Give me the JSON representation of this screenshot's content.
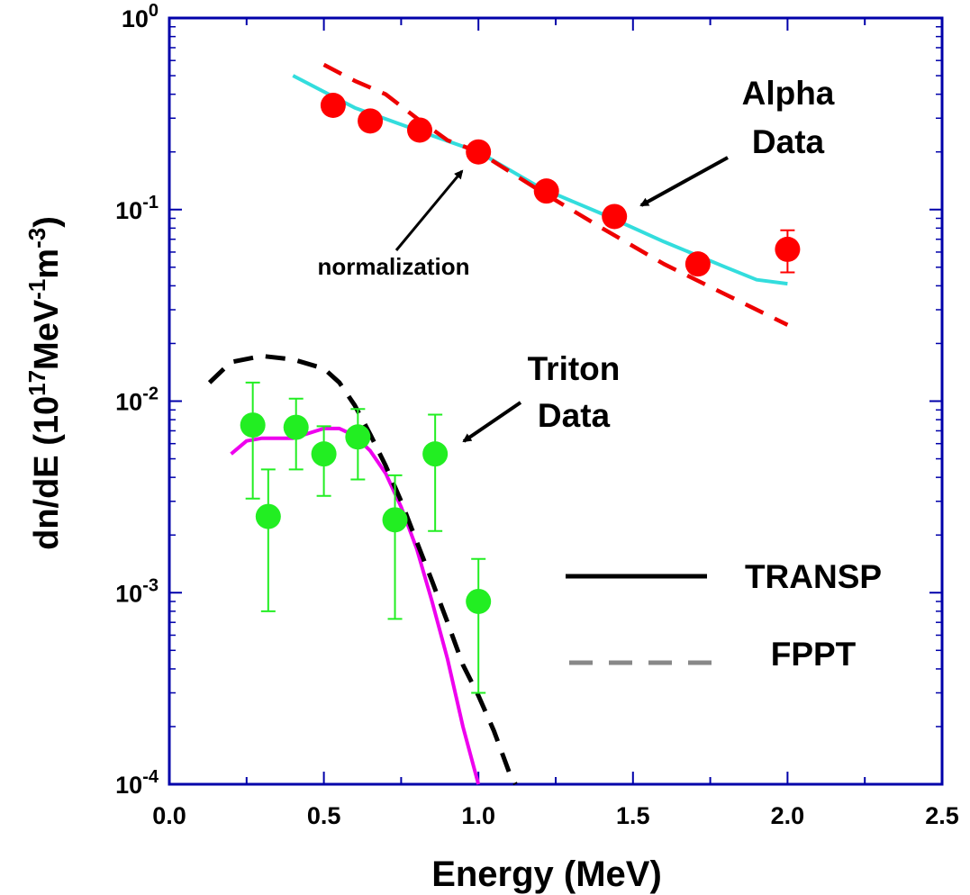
{
  "chart_data": {
    "type": "scatter",
    "xlabel": "Energy (MeV)",
    "ylabel": {
      "base": "dn/dE (10",
      "exp1": "17",
      "mid": "MeV",
      "exp2": "-1",
      "mid2": "m",
      "exp3": "-3",
      "end": ")"
    },
    "xlim": [
      0,
      2.5
    ],
    "ylim": [
      0.0001,
      1
    ],
    "yscale": "log",
    "grid": false,
    "x_ticks": [
      {
        "value": 0.0,
        "label": "0.0"
      },
      {
        "value": 0.5,
        "label": "0.5"
      },
      {
        "value": 1.0,
        "label": "1.0"
      },
      {
        "value": 1.5,
        "label": "1.5"
      },
      {
        "value": 2.0,
        "label": "2.0"
      },
      {
        "value": 2.5,
        "label": "2.5"
      }
    ],
    "y_ticks": [
      {
        "value": 1,
        "base": "10",
        "exp": "0"
      },
      {
        "value": 0.1,
        "base": "10",
        "exp": "-1"
      },
      {
        "value": 0.01,
        "base": "10",
        "exp": "-2"
      },
      {
        "value": 0.001,
        "base": "10",
        "exp": "-3"
      },
      {
        "value": 0.0001,
        "base": "10",
        "exp": "-4"
      }
    ],
    "colors": {
      "alpha_points": "#ff0000",
      "triton_points": "#22ee22",
      "alpha_transp": "#33dddd",
      "alpha_fppt": "#ee0000",
      "triton_transp": "#ee00ee",
      "triton_fppt": "#000000",
      "axis": "#0000aa"
    },
    "series": [
      {
        "key": "alpha_points",
        "kind": "points",
        "x": [
          0.53,
          0.65,
          0.81,
          1.0,
          1.22,
          1.44,
          1.71,
          2.0
        ],
        "y": [
          0.35,
          0.29,
          0.26,
          0.2,
          0.125,
          0.092,
          0.052,
          0.062
        ],
        "err_low": [
          null,
          null,
          null,
          null,
          null,
          null,
          null,
          0.047
        ],
        "err_high": [
          null,
          null,
          null,
          null,
          null,
          null,
          null,
          0.078
        ]
      },
      {
        "key": "alpha_transp",
        "kind": "line",
        "x": [
          0.4,
          0.6,
          0.8,
          1.0,
          1.2,
          1.4,
          1.6,
          1.8,
          1.9,
          2.0
        ],
        "y": [
          0.5,
          0.34,
          0.26,
          0.2,
          0.13,
          0.095,
          0.068,
          0.05,
          0.043,
          0.041
        ]
      },
      {
        "key": "alpha_fppt",
        "kind": "dashed",
        "x": [
          0.5,
          0.6,
          0.7,
          0.8,
          0.9,
          1.0,
          1.2,
          1.4,
          1.6,
          1.8,
          2.0
        ],
        "y": [
          0.57,
          0.47,
          0.4,
          0.3,
          0.23,
          0.2,
          0.125,
          0.08,
          0.052,
          0.036,
          0.025
        ]
      },
      {
        "key": "triton_points",
        "kind": "points",
        "x": [
          0.27,
          0.32,
          0.41,
          0.5,
          0.61,
          0.73,
          0.86,
          1.0
        ],
        "y": [
          0.0075,
          0.0025,
          0.0073,
          0.0053,
          0.0065,
          0.0024,
          0.0053,
          0.0009
        ],
        "err_low": [
          0.0031,
          0.0008,
          0.0044,
          0.0032,
          0.0039,
          0.00073,
          0.0021,
          0.0003
        ],
        "err_high": [
          0.0125,
          0.0044,
          0.0103,
          0.0074,
          0.0091,
          0.0041,
          0.0085,
          0.0015
        ]
      },
      {
        "key": "triton_transp",
        "kind": "line",
        "x": [
          0.2,
          0.25,
          0.3,
          0.4,
          0.5,
          0.55,
          0.6,
          0.65,
          0.7,
          0.75,
          0.8,
          0.85,
          0.9,
          0.95,
          1.0
        ],
        "y": [
          0.0053,
          0.0062,
          0.0064,
          0.0064,
          0.0072,
          0.0072,
          0.0066,
          0.0055,
          0.0042,
          0.0028,
          0.0017,
          0.0009,
          0.00045,
          0.0002,
          0.0001
        ]
      },
      {
        "key": "triton_fppt",
        "kind": "dashed",
        "x": [
          0.13,
          0.2,
          0.3,
          0.4,
          0.5,
          0.55,
          0.6,
          0.65,
          0.7,
          0.75,
          0.8,
          0.85,
          0.9,
          0.95,
          1.0,
          1.05,
          1.1,
          1.12
        ],
        "y": [
          0.0125,
          0.016,
          0.0172,
          0.0165,
          0.0148,
          0.0125,
          0.0095,
          0.0067,
          0.0046,
          0.003,
          0.00185,
          0.00115,
          0.0007,
          0.00042,
          0.00029,
          0.00019,
          0.000115,
          0.0001
        ]
      }
    ],
    "annotations": {
      "alpha_line1": "Alpha",
      "alpha_line2": "Data",
      "triton_line1": "Triton",
      "triton_line2": "Data",
      "normalization": "normalization"
    },
    "legend": {
      "placement": "bottom-right",
      "items": [
        {
          "label": "TRANSP",
          "style": "solid",
          "color": "#000000"
        },
        {
          "label": "FPPT",
          "style": "dashed",
          "color": "#888888"
        }
      ]
    }
  }
}
